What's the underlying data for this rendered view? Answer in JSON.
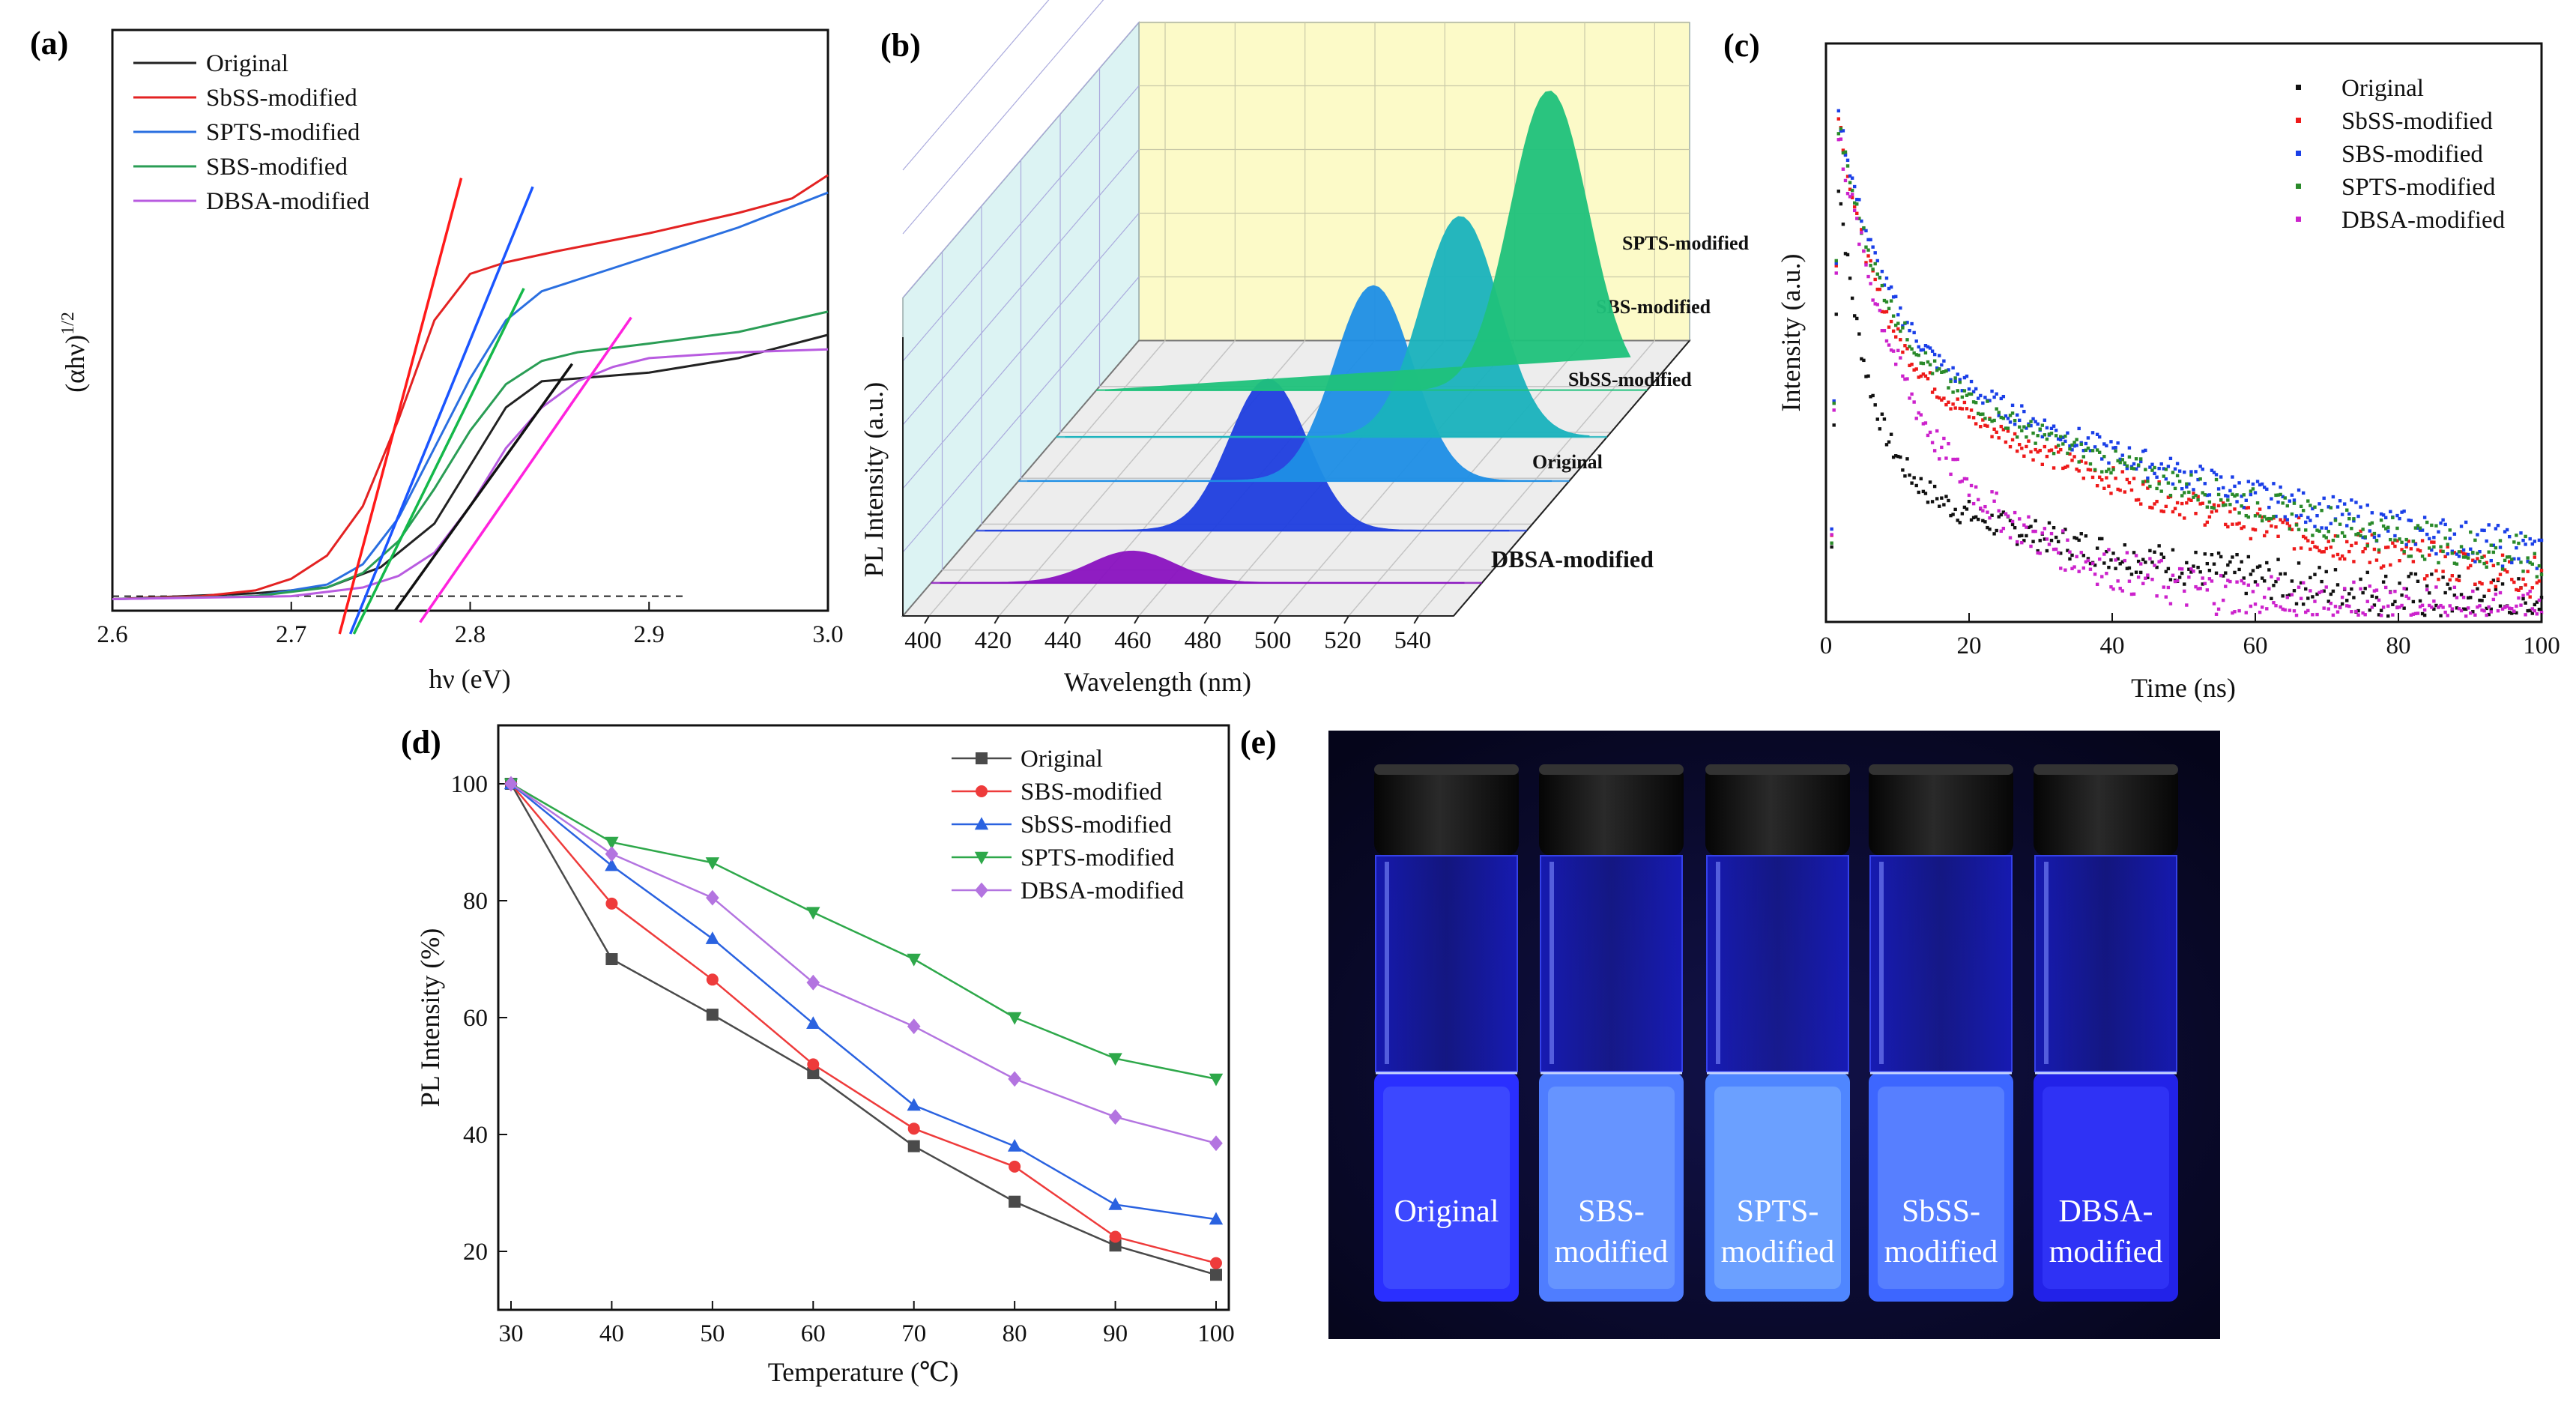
{
  "figure": {
    "description_free": true
  },
  "chart_data": [
    {
      "id": "a",
      "panel_label": "(a)",
      "type": "line",
      "xlabel": "hν (eV)",
      "ylabel": "(αhν)",
      "ylabel_sup": "1/2",
      "xlim": [
        2.6,
        3.0
      ],
      "ylim": [
        0,
        10
      ],
      "xticks": [
        "2.6",
        "2.7",
        "2.8",
        "2.9",
        "3.0"
      ],
      "baseline_y": 0.25,
      "baseline_x": [
        2.6,
        2.92
      ],
      "series": [
        {
          "name": "Original",
          "color": "#222222",
          "x": [
            2.6,
            2.64,
            2.68,
            2.72,
            2.75,
            2.78,
            2.8,
            2.82,
            2.84,
            2.86,
            2.9,
            2.95,
            3.0
          ],
          "y": [
            0.2,
            0.25,
            0.3,
            0.4,
            0.75,
            1.5,
            2.5,
            3.5,
            3.95,
            4.0,
            4.1,
            4.35,
            4.75
          ]
        },
        {
          "name": "SbSS-modified",
          "color": "#e32222",
          "x": [
            2.6,
            2.65,
            2.68,
            2.7,
            2.72,
            2.74,
            2.76,
            2.78,
            2.8,
            2.82,
            2.85,
            2.9,
            2.95,
            2.98,
            3.0
          ],
          "y": [
            0.2,
            0.25,
            0.35,
            0.55,
            0.95,
            1.8,
            3.3,
            5.0,
            5.8,
            6.0,
            6.2,
            6.5,
            6.85,
            7.1,
            7.5
          ]
        },
        {
          "name": "SPTS-modified",
          "color": "#2a6fe0",
          "x": [
            2.6,
            2.68,
            2.72,
            2.74,
            2.76,
            2.78,
            2.8,
            2.82,
            2.84,
            2.86,
            2.9,
            2.95,
            3.0
          ],
          "y": [
            0.2,
            0.25,
            0.45,
            0.8,
            1.6,
            2.8,
            4.0,
            5.0,
            5.5,
            5.7,
            6.1,
            6.6,
            7.2
          ]
        },
        {
          "name": "SBS-modified",
          "color": "#2a9d55",
          "x": [
            2.6,
            2.68,
            2.72,
            2.74,
            2.76,
            2.78,
            2.8,
            2.82,
            2.84,
            2.86,
            2.9,
            2.95,
            3.0
          ],
          "y": [
            0.2,
            0.25,
            0.4,
            0.65,
            1.2,
            2.1,
            3.1,
            3.9,
            4.3,
            4.45,
            4.6,
            4.8,
            5.15
          ]
        },
        {
          "name": "DBSA-modified",
          "color": "#b85be0",
          "x": [
            2.6,
            2.7,
            2.74,
            2.76,
            2.78,
            2.8,
            2.82,
            2.84,
            2.86,
            2.88,
            2.9,
            2.95,
            3.0
          ],
          "y": [
            0.2,
            0.25,
            0.4,
            0.6,
            1.0,
            1.8,
            2.8,
            3.5,
            3.95,
            4.2,
            4.35,
            4.45,
            4.5
          ]
        }
      ],
      "tangents": [
        {
          "series": "Original",
          "color": "#111111",
          "x": [
            2.758,
            2.857
          ],
          "y": [
            0.0,
            4.25
          ]
        },
        {
          "series": "SbSS-modified",
          "color": "#ff1a1a",
          "x": [
            2.727,
            2.795
          ],
          "y": [
            -0.4,
            7.45
          ]
        },
        {
          "series": "SPTS-modified",
          "color": "#1a55ff",
          "x": [
            2.733,
            2.835
          ],
          "y": [
            -0.4,
            7.3
          ]
        },
        {
          "series": "SBS-modified",
          "color": "#14b84a",
          "x": [
            2.735,
            2.83
          ],
          "y": [
            -0.4,
            5.55
          ]
        },
        {
          "series": "DBSA-modified",
          "color": "#ff22dd",
          "x": [
            2.772,
            2.89
          ],
          "y": [
            -0.2,
            5.05
          ]
        }
      ]
    },
    {
      "id": "b",
      "panel_label": "(b)",
      "type": "area",
      "xlabel": "Wavelength (nm)",
      "ylabel": "PL Intensity (a.u.)",
      "xlim": [
        390,
        540
      ],
      "xticks": [
        "400",
        "420",
        "440",
        "460",
        "480",
        "500",
        "520",
        "540"
      ],
      "series": [
        {
          "name": "DBSA-modified",
          "color": "#8a12c0",
          "peak": 450,
          "amplitude": 0.1,
          "width": 12
        },
        {
          "name": "Original",
          "color": "#1f3fe0",
          "peak": 476,
          "amplitude": 0.48,
          "width": 11
        },
        {
          "name": "SbSS-modified",
          "color": "#1e8fe6",
          "peak": 494,
          "amplitude": 0.62,
          "width": 11
        },
        {
          "name": "SBS-modified",
          "color": "#1ab3bd",
          "peak": 508,
          "amplitude": 0.7,
          "width": 11
        },
        {
          "name": "SPTS-modified",
          "color": "#1fc27c",
          "peak": 522,
          "amplitude": 0.95,
          "width": 11
        }
      ]
    },
    {
      "id": "c",
      "panel_label": "(c)",
      "type": "scatter",
      "xlabel": "Time (ns)",
      "ylabel": "Intensity (a.u.)",
      "xlim": [
        0,
        100
      ],
      "xticks": [
        "0",
        "20",
        "40",
        "60",
        "80",
        "100"
      ],
      "series": [
        {
          "name": "Original",
          "color": "#111111",
          "peak": 0.78,
          "tau1": 4,
          "tau2": 55,
          "amp1": 0.5,
          "amp2": 0.28,
          "noise": 0.018
        },
        {
          "name": "SbSS-modified",
          "color": "#ee1a1a",
          "peak": 0.9,
          "tau1": 5,
          "tau2": 60,
          "amp1": 0.4,
          "amp2": 0.5,
          "noise": 0.014
        },
        {
          "name": "SBS-modified",
          "color": "#1a3fe8",
          "peak": 0.9,
          "tau1": 6,
          "tau2": 75,
          "amp1": 0.38,
          "amp2": 0.52,
          "noise": 0.014
        },
        {
          "name": "SPTS-modified",
          "color": "#2a8a2a",
          "peak": 0.88,
          "tau1": 6,
          "tau2": 72,
          "amp1": 0.38,
          "amp2": 0.5,
          "noise": 0.014
        },
        {
          "name": "DBSA-modified",
          "color": "#cc22cc",
          "peak": 0.86,
          "tau1": 9,
          "tau2": 35,
          "amp1": 0.55,
          "amp2": 0.31,
          "noise": 0.022
        }
      ]
    },
    {
      "id": "d",
      "panel_label": "(d)",
      "type": "line",
      "xlabel": "Temperature (℃)",
      "ylabel": "PL Intensity (%)",
      "xlim": [
        30,
        100
      ],
      "ylim": [
        10,
        110
      ],
      "xticks": [
        "30",
        "40",
        "50",
        "60",
        "70",
        "80",
        "90",
        "100"
      ],
      "yticks": [
        "20",
        "40",
        "60",
        "80",
        "100"
      ],
      "x": [
        30,
        40,
        50,
        60,
        70,
        80,
        90,
        100
      ],
      "series": [
        {
          "name": "Original",
          "color": "#4a4a4a",
          "marker": "square",
          "values": [
            100,
            70,
            60.5,
            50.5,
            38,
            28.5,
            21,
            16
          ]
        },
        {
          "name": "SBS-modified",
          "color": "#ee3b3b",
          "marker": "circle",
          "values": [
            100,
            79.5,
            66.5,
            52,
            41,
            34.5,
            22.5,
            18
          ]
        },
        {
          "name": "SbSS-modified",
          "color": "#2a62e0",
          "marker": "triangle-up",
          "values": [
            100,
            86,
            73.5,
            59,
            45,
            38,
            28,
            25.5
          ]
        },
        {
          "name": "SPTS-modified",
          "color": "#2ea84a",
          "marker": "triangle-down",
          "values": [
            100,
            90,
            86.5,
            78,
            70,
            60,
            53,
            49.5
          ]
        },
        {
          "name": "DBSA-modified",
          "color": "#b374e0",
          "marker": "diamond",
          "values": [
            100,
            88,
            80.5,
            66,
            58.5,
            49.5,
            43,
            38.5
          ]
        }
      ]
    }
  ],
  "panel_e": {
    "panel_label": "(e)",
    "vials": [
      {
        "label_line1": "Original",
        "label_line2": "",
        "liquid_color": "#2a2fff",
        "glow_color": "#4a5cff"
      },
      {
        "label_line1": "SBS-",
        "label_line2": "modified",
        "liquid_color": "#4f7dff",
        "glow_color": "#7aa8ff"
      },
      {
        "label_line1": "SPTS-",
        "label_line2": "modified",
        "liquid_color": "#4f86ff",
        "glow_color": "#84b6ff"
      },
      {
        "label_line1": "SbSS-",
        "label_line2": "modified",
        "liquid_color": "#3d66ff",
        "glow_color": "#6d94ff"
      },
      {
        "label_line1": "DBSA-",
        "label_line2": "modified",
        "liquid_color": "#2222e8",
        "glow_color": "#3a40ff"
      }
    ]
  }
}
